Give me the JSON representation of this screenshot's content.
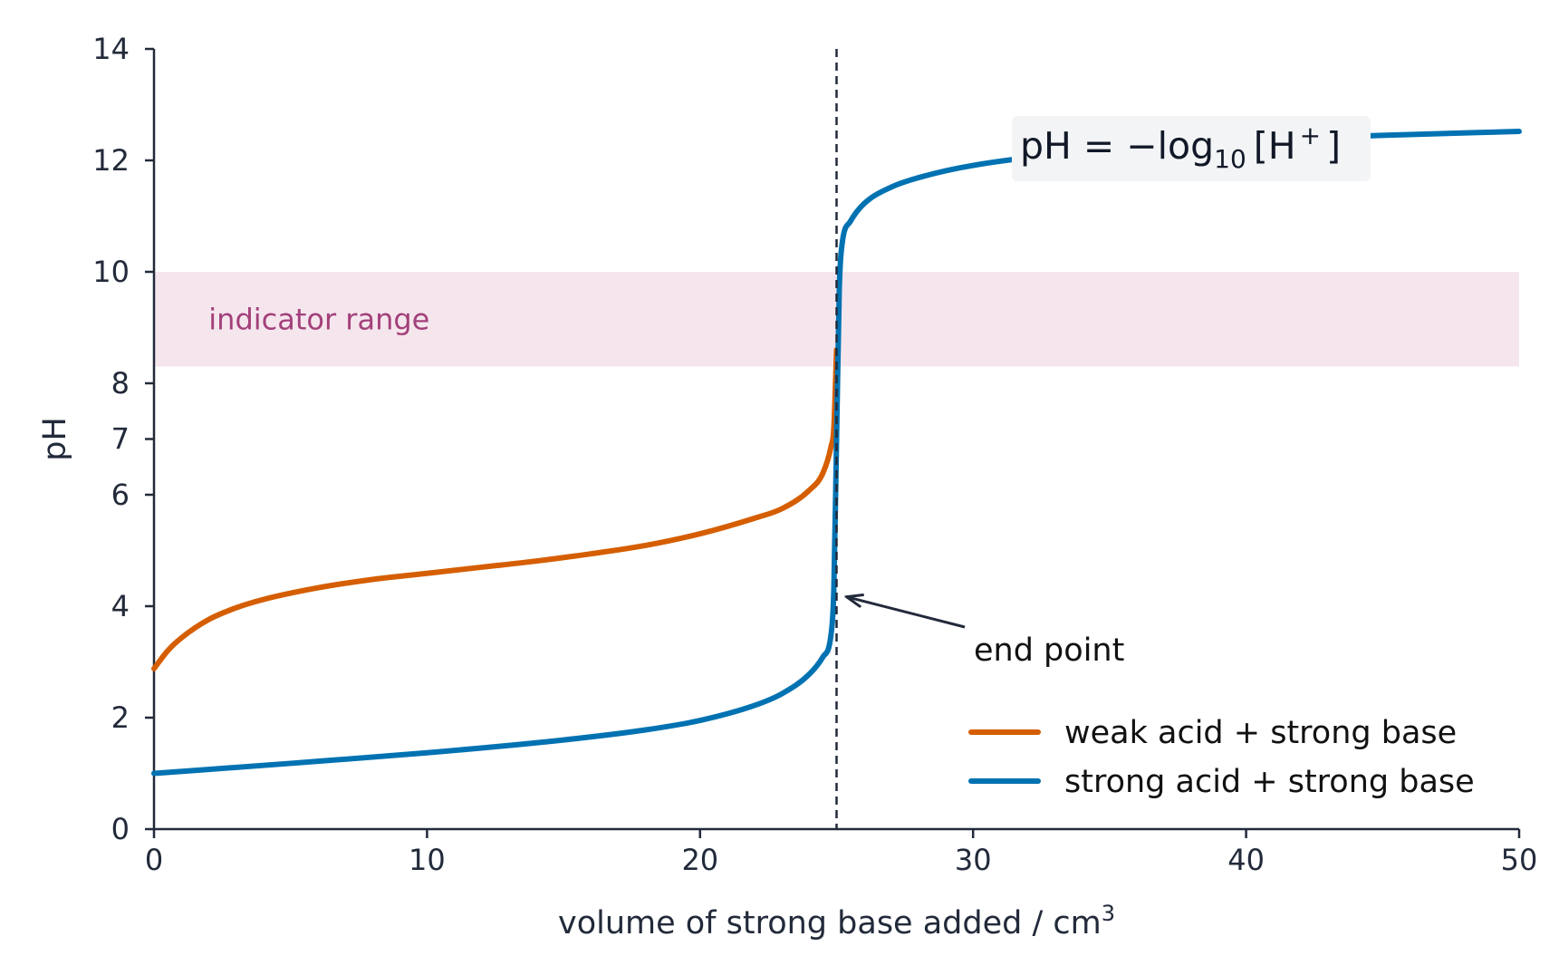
{
  "chart_data": {
    "type": "line",
    "title": "",
    "xlabel": "volume of strong base added / cm",
    "xlabel_superscript": "3",
    "ylabel": "pH",
    "xlim": [
      0,
      50
    ],
    "ylim": [
      0,
      14
    ],
    "x_ticks": [
      0,
      10,
      20,
      30,
      40,
      50
    ],
    "y_ticks": [
      0,
      2,
      4,
      6,
      7,
      8,
      10,
      12,
      14
    ],
    "grid": false,
    "legend_position": "lower-right",
    "series": [
      {
        "name": "weak acid + strong base",
        "color": "#d55e00",
        "x": [
          0,
          0.5,
          1,
          2,
          3,
          4,
          6,
          8,
          10,
          12,
          14,
          16,
          18,
          20,
          22,
          23,
          24,
          24.5,
          24.8,
          24.9,
          25
        ],
        "y": [
          2.88,
          3.2,
          3.43,
          3.76,
          3.97,
          4.12,
          4.33,
          4.48,
          4.59,
          4.7,
          4.81,
          4.94,
          5.09,
          5.3,
          5.58,
          5.75,
          6.08,
          6.39,
          6.87,
          7.2,
          8.6
        ]
      },
      {
        "name": "strong acid + strong base",
        "color": "#0072b2",
        "x": [
          0,
          5,
          10,
          15,
          18,
          20,
          22,
          23,
          24,
          24.5,
          24.8,
          24.9,
          25,
          25.1,
          25.2,
          25.5,
          26,
          27,
          28,
          30,
          35,
          40,
          45,
          50
        ],
        "y": [
          1.0,
          1.18,
          1.37,
          1.6,
          1.78,
          1.95,
          2.22,
          2.43,
          2.78,
          3.09,
          3.5,
          4.3,
          7.0,
          9.7,
          10.49,
          10.9,
          11.22,
          11.52,
          11.69,
          11.91,
          12.19,
          12.35,
          12.45,
          12.52
        ]
      }
    ],
    "vertical_line": {
      "x": 25,
      "style": "dashed"
    },
    "shaded_band": {
      "y_range": [
        8.3,
        10
      ],
      "label": "indicator range",
      "color": "#f5e6ee",
      "label_color": "#a3407a"
    },
    "annotations": [
      {
        "text": "end point",
        "points_to": {
          "x": 25.3,
          "y": 4.2
        }
      }
    ],
    "formula": {
      "base": "pH = −log",
      "subscript": "10",
      "bracket_open": "[H",
      "superscript": "+",
      "bracket_close": "]"
    }
  }
}
